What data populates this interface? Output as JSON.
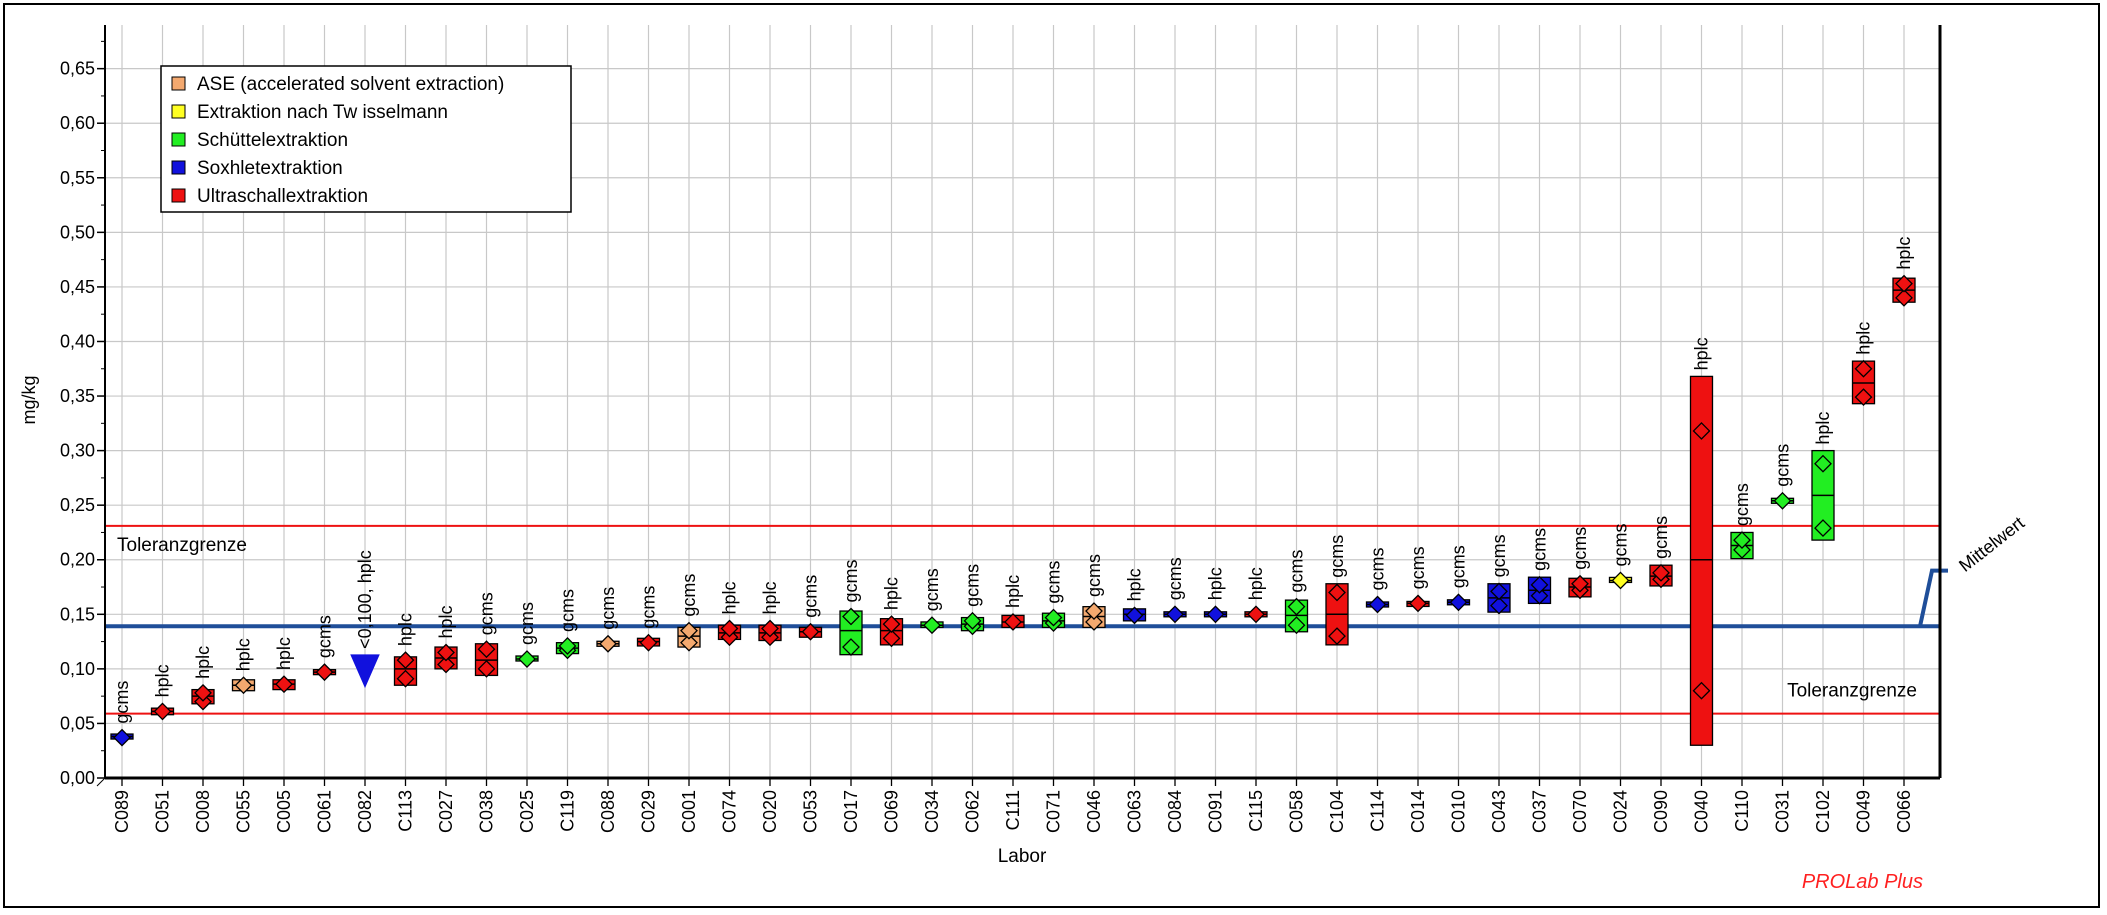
{
  "chart_data": {
    "type": "box",
    "xlabel": "Labor",
    "ylabel": "mg/kg",
    "ylim": [
      0,
      0.69
    ],
    "yticks": [
      "0,00",
      "0,05",
      "0,10",
      "0,15",
      "0,20",
      "0,25",
      "0,30",
      "0,35",
      "0,40",
      "0,45",
      "0,50",
      "0,55",
      "0,60",
      "0,65"
    ],
    "grid": true,
    "legend_position": "top-left",
    "legend": [
      {
        "name": "ASE (accelerated solvent extraction)",
        "color": "#f4a96f"
      },
      {
        "name": "Extraktion nach Tw isselmann",
        "color": "#ffff22"
      },
      {
        "name": "Schüttelextraktion",
        "color": "#22ee22"
      },
      {
        "name": "Soxhletextraktion",
        "color": "#1111dd"
      },
      {
        "name": "Ultraschallextraktion",
        "color": "#ee1111"
      }
    ],
    "reference_lines": {
      "mean": {
        "label": "Mittelwert",
        "value": 0.139,
        "color": "#1f4e99"
      },
      "upper_tolerance": {
        "label": "Toleranzgrenze",
        "value": 0.231,
        "color": "#ee1111"
      },
      "lower_tolerance": {
        "label": "Toleranzgrenze",
        "value": 0.059,
        "color": "#ee1111"
      }
    },
    "labs": [
      {
        "lab": "C089",
        "method": "gcms",
        "group": 3,
        "low": 0.036,
        "high": 0.04,
        "median": 0.038,
        "points": [
          0.037
        ]
      },
      {
        "lab": "C051",
        "method": "hplc",
        "group": 4,
        "low": 0.058,
        "high": 0.064,
        "median": 0.061,
        "points": [
          0.061
        ]
      },
      {
        "lab": "C008",
        "method": "hplc",
        "group": 4,
        "low": 0.068,
        "high": 0.081,
        "median": 0.075,
        "points": [
          0.07,
          0.078
        ]
      },
      {
        "lab": "C055",
        "method": "hplc",
        "group": 0,
        "low": 0.08,
        "high": 0.09,
        "median": 0.085,
        "points": [
          0.085
        ]
      },
      {
        "lab": "C005",
        "method": "hplc",
        "group": 4,
        "low": 0.081,
        "high": 0.09,
        "median": 0.086,
        "points": [
          0.086
        ]
      },
      {
        "lab": "C061",
        "method": "gcms",
        "group": 4,
        "low": 0.097,
        "high": 0.097,
        "median": 0.097,
        "points": [
          0.097
        ]
      },
      {
        "lab": "C082",
        "method": "<0,100, hplc",
        "group": 3,
        "low": 0.1,
        "high": 0.1,
        "median": 0.1,
        "points": [],
        "marker": "triangle"
      },
      {
        "lab": "C113",
        "method": "hplc",
        "group": 4,
        "low": 0.085,
        "high": 0.111,
        "median": 0.1,
        "points": [
          0.091,
          0.108
        ]
      },
      {
        "lab": "C027",
        "method": "hplc",
        "group": 4,
        "low": 0.1,
        "high": 0.12,
        "median": 0.11,
        "points": [
          0.104,
          0.115
        ]
      },
      {
        "lab": "C038",
        "method": "gcms",
        "group": 4,
        "low": 0.094,
        "high": 0.123,
        "median": 0.108,
        "points": [
          0.1,
          0.118
        ]
      },
      {
        "lab": "C025",
        "method": "gcms",
        "group": 2,
        "low": 0.108,
        "high": 0.111,
        "median": 0.109,
        "points": [
          0.109
        ]
      },
      {
        "lab": "C119",
        "method": "gcms",
        "group": 2,
        "low": 0.114,
        "high": 0.124,
        "median": 0.119,
        "points": [
          0.117,
          0.121
        ]
      },
      {
        "lab": "C088",
        "method": "gcms",
        "group": 0,
        "low": 0.122,
        "high": 0.124,
        "median": 0.123,
        "points": [
          0.123
        ]
      },
      {
        "lab": "C029",
        "method": "gcms",
        "group": 4,
        "low": 0.121,
        "high": 0.128,
        "median": 0.125,
        "points": [
          0.124
        ]
      },
      {
        "lab": "C001",
        "method": "gcms",
        "group": 0,
        "low": 0.12,
        "high": 0.138,
        "median": 0.13,
        "points": [
          0.124,
          0.135
        ]
      },
      {
        "lab": "C074",
        "method": "hplc",
        "group": 4,
        "low": 0.127,
        "high": 0.14,
        "median": 0.133,
        "points": [
          0.129,
          0.137
        ]
      },
      {
        "lab": "C020",
        "method": "hplc",
        "group": 4,
        "low": 0.126,
        "high": 0.14,
        "median": 0.133,
        "points": [
          0.129,
          0.137
        ]
      },
      {
        "lab": "C053",
        "method": "gcms",
        "group": 4,
        "low": 0.129,
        "high": 0.138,
        "median": 0.134,
        "points": [
          0.134
        ]
      },
      {
        "lab": "C017",
        "method": "gcms",
        "group": 2,
        "low": 0.113,
        "high": 0.153,
        "median": 0.135,
        "points": [
          0.12,
          0.148
        ]
      },
      {
        "lab": "C069",
        "method": "hplc",
        "group": 4,
        "low": 0.122,
        "high": 0.146,
        "median": 0.135,
        "points": [
          0.128,
          0.141
        ]
      },
      {
        "lab": "C034",
        "method": "gcms",
        "group": 2,
        "low": 0.138,
        "high": 0.143,
        "median": 0.14,
        "points": [
          0.14
        ]
      },
      {
        "lab": "C062",
        "method": "gcms",
        "group": 2,
        "low": 0.135,
        "high": 0.147,
        "median": 0.141,
        "points": [
          0.139,
          0.144
        ]
      },
      {
        "lab": "C111",
        "method": "hplc",
        "group": 4,
        "low": 0.138,
        "high": 0.149,
        "median": 0.143,
        "points": [
          0.143
        ]
      },
      {
        "lab": "C071",
        "method": "gcms",
        "group": 2,
        "low": 0.138,
        "high": 0.151,
        "median": 0.144,
        "points": [
          0.142,
          0.147
        ]
      },
      {
        "lab": "C046",
        "method": "gcms",
        "group": 0,
        "low": 0.138,
        "high": 0.157,
        "median": 0.148,
        "points": [
          0.143,
          0.153
        ]
      },
      {
        "lab": "C063",
        "method": "hplc",
        "group": 3,
        "low": 0.144,
        "high": 0.155,
        "median": 0.15,
        "points": [
          0.149
        ]
      },
      {
        "lab": "C084",
        "method": "gcms",
        "group": 3,
        "low": 0.148,
        "high": 0.152,
        "median": 0.15,
        "points": [
          0.15
        ]
      },
      {
        "lab": "C091",
        "method": "hplc",
        "group": 3,
        "low": 0.149,
        "high": 0.151,
        "median": 0.15,
        "points": [
          0.15
        ]
      },
      {
        "lab": "C115",
        "method": "hplc",
        "group": 4,
        "low": 0.149,
        "high": 0.151,
        "median": 0.15,
        "points": [
          0.15
        ]
      },
      {
        "lab": "C058",
        "method": "gcms",
        "group": 2,
        "low": 0.134,
        "high": 0.163,
        "median": 0.149,
        "points": [
          0.14,
          0.157
        ]
      },
      {
        "lab": "C104",
        "method": "gcms",
        "group": 4,
        "low": 0.122,
        "high": 0.178,
        "median": 0.15,
        "points": [
          0.13,
          0.17
        ]
      },
      {
        "lab": "C114",
        "method": "gcms",
        "group": 3,
        "low": 0.158,
        "high": 0.16,
        "median": 0.159,
        "points": [
          0.159
        ]
      },
      {
        "lab": "C014",
        "method": "gcms",
        "group": 4,
        "low": 0.159,
        "high": 0.16,
        "median": 0.16,
        "points": [
          0.16
        ]
      },
      {
        "lab": "C010",
        "method": "gcms",
        "group": 3,
        "low": 0.16,
        "high": 0.162,
        "median": 0.161,
        "points": [
          0.161
        ]
      },
      {
        "lab": "C043",
        "method": "gcms",
        "group": 3,
        "low": 0.152,
        "high": 0.178,
        "median": 0.165,
        "points": [
          0.158,
          0.171
        ]
      },
      {
        "lab": "C037",
        "method": "gcms",
        "group": 3,
        "low": 0.16,
        "high": 0.184,
        "median": 0.172,
        "points": [
          0.167,
          0.177
        ]
      },
      {
        "lab": "C070",
        "method": "gcms",
        "group": 4,
        "low": 0.166,
        "high": 0.183,
        "median": 0.175,
        "points": [
          0.172,
          0.178
        ]
      },
      {
        "lab": "C024",
        "method": "gcms",
        "group": 1,
        "low": 0.18,
        "high": 0.183,
        "median": 0.181,
        "points": [
          0.181
        ]
      },
      {
        "lab": "C090",
        "method": "gcms",
        "group": 4,
        "low": 0.176,
        "high": 0.195,
        "median": 0.185,
        "points": [
          0.182,
          0.188
        ]
      },
      {
        "lab": "C040",
        "method": "hplc",
        "group": 4,
        "low": 0.03,
        "high": 0.368,
        "median": 0.2,
        "points": [
          0.08,
          0.318
        ]
      },
      {
        "lab": "C110",
        "method": "gcms",
        "group": 2,
        "low": 0.201,
        "high": 0.225,
        "median": 0.213,
        "points": [
          0.209,
          0.218
        ]
      },
      {
        "lab": "C031",
        "method": "gcms",
        "group": 2,
        "low": 0.253,
        "high": 0.255,
        "median": 0.254,
        "points": [
          0.254
        ]
      },
      {
        "lab": "C102",
        "method": "hplc",
        "group": 2,
        "low": 0.218,
        "high": 0.3,
        "median": 0.259,
        "points": [
          0.229,
          0.288
        ]
      },
      {
        "lab": "C049",
        "method": "hplc",
        "group": 4,
        "low": 0.343,
        "high": 0.382,
        "median": 0.362,
        "points": [
          0.349,
          0.375
        ]
      },
      {
        "lab": "C066",
        "method": "hplc",
        "group": 4,
        "low": 0.436,
        "high": 0.458,
        "median": 0.447,
        "points": [
          0.44,
          0.453
        ]
      }
    ]
  },
  "brand": "PROLab Plus"
}
